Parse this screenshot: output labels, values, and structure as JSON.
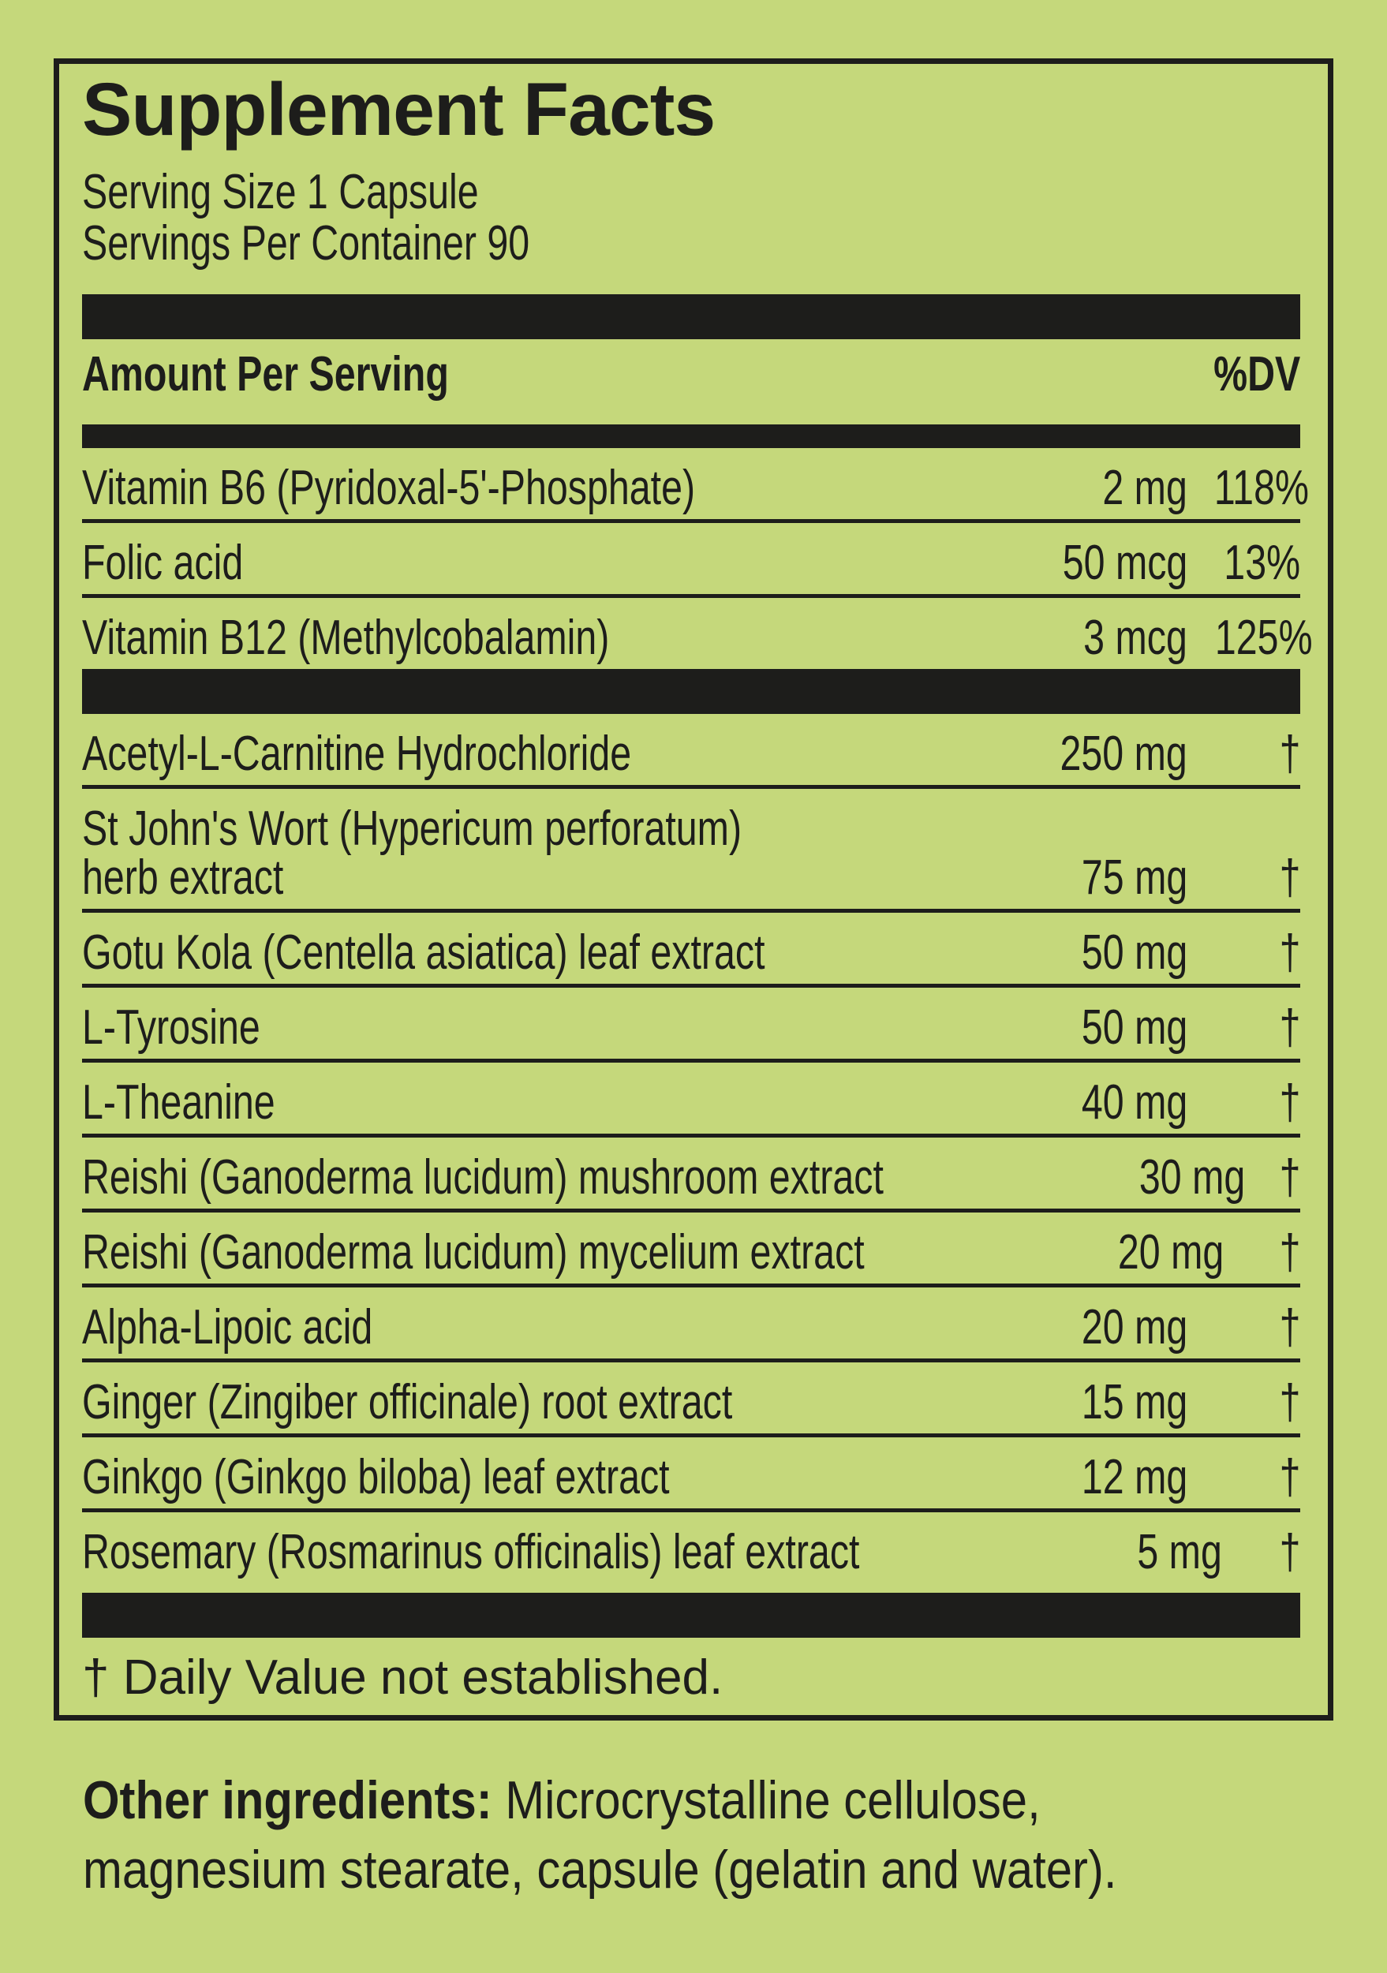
{
  "colors": {
    "background": "#c5d87b",
    "ink": "#1d1d1b"
  },
  "panel": {
    "title": "Supplement Facts",
    "serving_size": "Serving Size 1 Capsule",
    "servings_per_container": "Servings Per Container 90",
    "amount_header": "Amount Per Serving",
    "dv_header": "%DV",
    "vitamins": [
      {
        "name": "Vitamin B6 (Pyridoxal-5'-Phosphate)",
        "amount": "2 mg",
        "dv": "118%"
      },
      {
        "name": "Folic acid",
        "amount": "50 mcg",
        "dv": "13%"
      },
      {
        "name": "Vitamin B12 (Methylcobalamin)",
        "amount": "3 mcg",
        "dv": "125%"
      }
    ],
    "botanicals": [
      {
        "name": "Acetyl-L-Carnitine Hydrochloride",
        "amount": "250 mg",
        "dv": "†"
      },
      {
        "name": "St John's Wort (Hypericum perforatum)\nherb extract",
        "amount": "75 mg",
        "dv": "†"
      },
      {
        "name": "Gotu Kola (Centella asiatica) leaf extract",
        "amount": "50 mg",
        "dv": "†"
      },
      {
        "name": "L-Tyrosine",
        "amount": "50 mg",
        "dv": "†"
      },
      {
        "name": "L-Theanine",
        "amount": "40 mg",
        "dv": "†"
      },
      {
        "name": "Reishi (Ganoderma lucidum) mushroom extract",
        "amount": "30 mg",
        "dv": "†"
      },
      {
        "name": "Reishi (Ganoderma lucidum) mycelium extract",
        "amount": "20 mg",
        "dv": "†"
      },
      {
        "name": "Alpha-Lipoic acid",
        "amount": "20 mg",
        "dv": "†"
      },
      {
        "name": "Ginger (Zingiber officinale) root extract",
        "amount": "15 mg",
        "dv": "†"
      },
      {
        "name": "Ginkgo (Ginkgo biloba) leaf extract",
        "amount": "12 mg",
        "dv": "†"
      },
      {
        "name": "Rosemary (Rosmarinus officinalis) leaf extract",
        "amount": "5 mg",
        "dv": "†"
      }
    ],
    "footnote": "† Daily Value not established."
  },
  "other_ingredients": {
    "label": "Other ingredients:",
    "line1_rest": " Microcrystalline cellulose,",
    "line2": "magnesium stearate, capsule (gelatin and water)."
  }
}
